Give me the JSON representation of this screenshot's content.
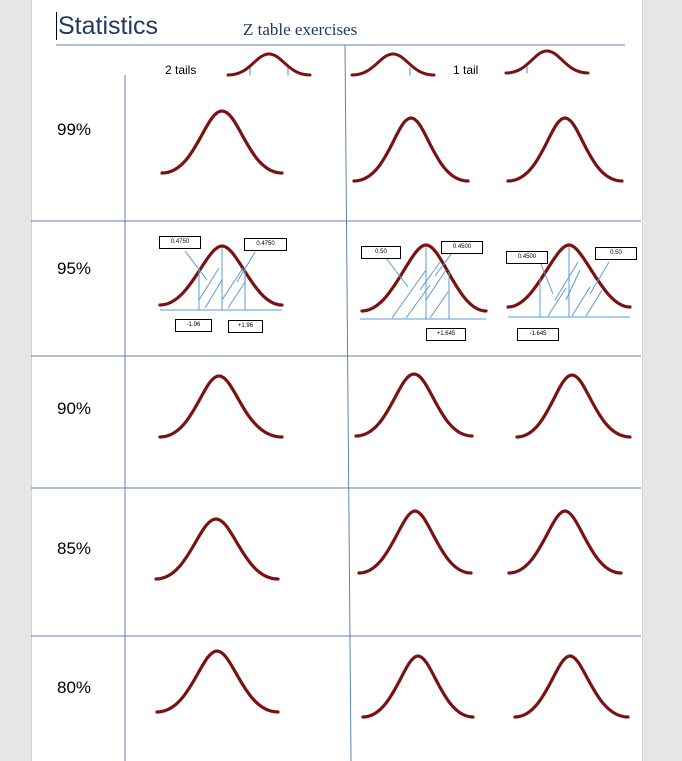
{
  "title": "Statistics",
  "subtitle": "Z table exercises",
  "headers": {
    "two_tails": "2 tails",
    "one_tail": "1 tail"
  },
  "rows": [
    {
      "label": "99%"
    },
    {
      "label": "95%"
    },
    {
      "label": "90%"
    },
    {
      "label": "85%"
    },
    {
      "label": "80%"
    }
  ],
  "example_95": {
    "two_tail": {
      "left_area": "0.4750",
      "right_area": "0.4750",
      "z_left": "-1.96",
      "z_right": "+1.96"
    },
    "right_tail": {
      "left_area": "0.50",
      "right_area": "0.4500",
      "z": "+1.645"
    },
    "left_tail": {
      "left_area": "0.4500",
      "right_area": "0.50",
      "z": "-1.645"
    }
  },
  "colors": {
    "curve": "#7b1212",
    "grid": "#5b84b1",
    "hatch": "#5b9bd5",
    "title": "#1f3864"
  }
}
